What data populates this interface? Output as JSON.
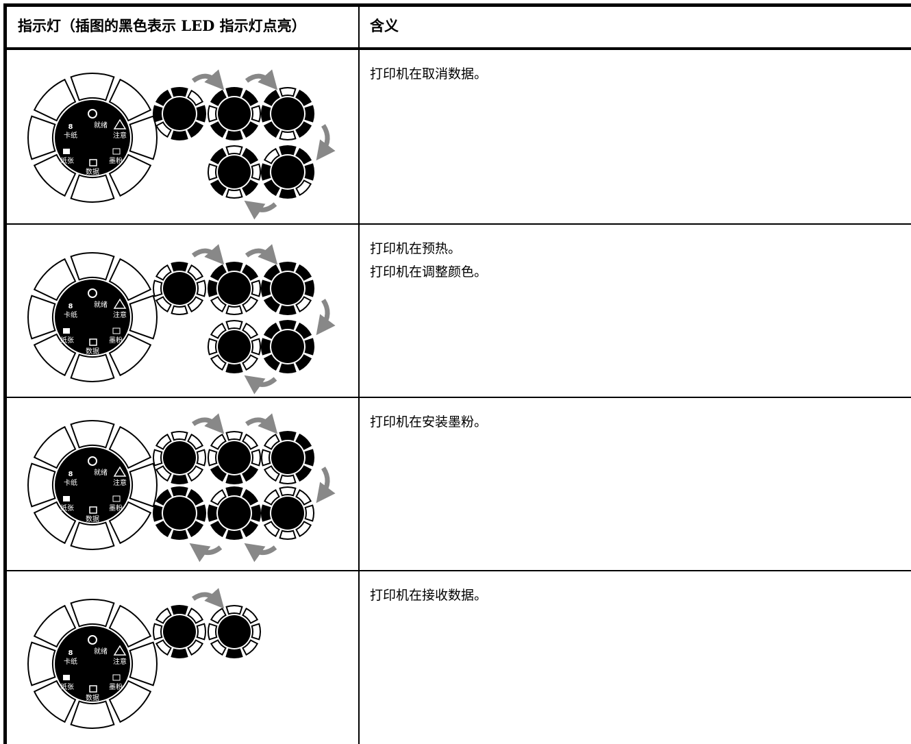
{
  "table": {
    "header": [
      "指示灯（插图的黑色表示 LED 指示灯点亮）",
      "含义"
    ],
    "rows": [
      {
        "meaning": [
          "打印机在取消数据。"
        ]
      },
      {
        "meaning": [
          "打印机在预热。",
          "打印机在调整颜色。"
        ]
      },
      {
        "meaning": [
          "打印机在安装墨粉。"
        ]
      },
      {
        "meaning": [
          "打印机在接收数据。"
        ]
      }
    ]
  },
  "panel_labels": {
    "ready": "就绪",
    "attention": "注意",
    "jam": "卡纸",
    "paper": "纸张",
    "toner": "墨粉",
    "data": "数据"
  }
}
